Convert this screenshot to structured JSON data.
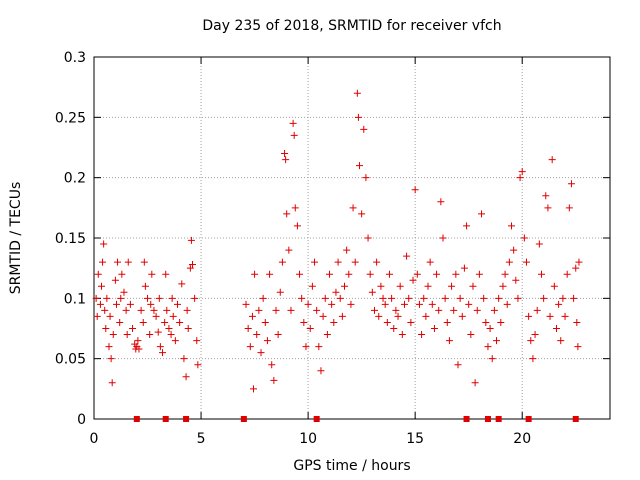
{
  "chart_data": {
    "type": "scatter",
    "title": "Day 235 of 2018, SRMTID for receiver vfch",
    "xlabel": "GPS time / hours",
    "ylabel": "SRMTID / TECUs",
    "xlim": [
      0,
      24.1
    ],
    "ylim": [
      0,
      0.3
    ],
    "x_ticks": [
      0,
      5,
      10,
      15,
      20
    ],
    "x_tick_labels": [
      "0",
      "5",
      "10",
      "15",
      "20"
    ],
    "y_ticks": [
      0,
      0.05,
      0.1,
      0.15,
      0.2,
      0.25,
      0.3
    ],
    "y_tick_labels": [
      "0",
      "0.05",
      "0.1",
      "0.15",
      "0.2",
      "0.25",
      "0.3"
    ],
    "grid": true,
    "marker": "plus",
    "color": "#e00000",
    "zero_markers_x": [
      2.0,
      3.35,
      4.3,
      7.0,
      10.4,
      17.4,
      18.4,
      18.9,
      20.3,
      22.5
    ],
    "series": [
      {
        "name": "SRMTID",
        "points": [
          [
            0.1,
            0.1
          ],
          [
            0.15,
            0.085
          ],
          [
            0.2,
            0.12
          ],
          [
            0.3,
            0.095
          ],
          [
            0.35,
            0.11
          ],
          [
            0.4,
            0.13
          ],
          [
            0.45,
            0.145
          ],
          [
            0.5,
            0.09
          ],
          [
            0.55,
            0.075
          ],
          [
            0.6,
            0.1
          ],
          [
            0.7,
            0.06
          ],
          [
            0.75,
            0.085
          ],
          [
            0.8,
            0.05
          ],
          [
            0.85,
            0.03
          ],
          [
            0.9,
            0.07
          ],
          [
            1.0,
            0.115
          ],
          [
            1.05,
            0.095
          ],
          [
            1.1,
            0.13
          ],
          [
            1.2,
            0.08
          ],
          [
            1.25,
            0.1
          ],
          [
            1.3,
            0.12
          ],
          [
            1.4,
            0.105
          ],
          [
            1.5,
            0.09
          ],
          [
            1.55,
            0.07
          ],
          [
            1.6,
            0.13
          ],
          [
            1.7,
            0.095
          ],
          [
            1.8,
            0.075
          ],
          [
            1.9,
            0.062
          ],
          [
            1.95,
            0.058
          ],
          [
            2.0,
            0.06
          ],
          [
            2.05,
            0.065
          ],
          [
            2.1,
            0.058
          ],
          [
            2.2,
            0.09
          ],
          [
            2.3,
            0.08
          ],
          [
            2.35,
            0.13
          ],
          [
            2.4,
            0.11
          ],
          [
            2.5,
            0.1
          ],
          [
            2.6,
            0.07
          ],
          [
            2.65,
            0.095
          ],
          [
            2.7,
            0.12
          ],
          [
            2.8,
            0.09
          ],
          [
            2.9,
            0.085
          ],
          [
            3.0,
            0.072
          ],
          [
            3.05,
            0.1
          ],
          [
            3.1,
            0.06
          ],
          [
            3.2,
            0.055
          ],
          [
            3.3,
            0.08
          ],
          [
            3.35,
            0.12
          ],
          [
            3.4,
            0.09
          ],
          [
            3.5,
            0.075
          ],
          [
            3.6,
            0.07
          ],
          [
            3.65,
            0.1
          ],
          [
            3.7,
            0.085
          ],
          [
            3.8,
            0.065
          ],
          [
            3.9,
            0.095
          ],
          [
            4.0,
            0.08
          ],
          [
            4.1,
            0.112
          ],
          [
            4.2,
            0.05
          ],
          [
            4.3,
            0.035
          ],
          [
            4.35,
            0.09
          ],
          [
            4.4,
            0.075
          ],
          [
            4.5,
            0.125
          ],
          [
            4.55,
            0.148
          ],
          [
            4.6,
            0.128
          ],
          [
            4.7,
            0.1
          ],
          [
            4.8,
            0.065
          ],
          [
            4.85,
            0.045
          ],
          [
            7.1,
            0.095
          ],
          [
            7.2,
            0.075
          ],
          [
            7.3,
            0.06
          ],
          [
            7.4,
            0.085
          ],
          [
            7.45,
            0.025
          ],
          [
            7.5,
            0.12
          ],
          [
            7.6,
            0.07
          ],
          [
            7.7,
            0.09
          ],
          [
            7.8,
            0.055
          ],
          [
            7.9,
            0.1
          ],
          [
            8.0,
            0.08
          ],
          [
            8.1,
            0.065
          ],
          [
            8.2,
            0.12
          ],
          [
            8.3,
            0.045
          ],
          [
            8.4,
            0.032
          ],
          [
            8.5,
            0.09
          ],
          [
            8.6,
            0.07
          ],
          [
            8.7,
            0.105
          ],
          [
            8.8,
            0.13
          ],
          [
            8.9,
            0.22
          ],
          [
            8.95,
            0.215
          ],
          [
            9.0,
            0.17
          ],
          [
            9.1,
            0.14
          ],
          [
            9.2,
            0.09
          ],
          [
            9.3,
            0.245
          ],
          [
            9.35,
            0.235
          ],
          [
            9.4,
            0.175
          ],
          [
            9.5,
            0.16
          ],
          [
            9.6,
            0.12
          ],
          [
            9.7,
            0.1
          ],
          [
            9.8,
            0.08
          ],
          [
            9.9,
            0.06
          ],
          [
            10.0,
            0.095
          ],
          [
            10.1,
            0.075
          ],
          [
            10.2,
            0.11
          ],
          [
            10.3,
            0.13
          ],
          [
            10.4,
            0.09
          ],
          [
            10.5,
            0.06
          ],
          [
            10.6,
            0.04
          ],
          [
            10.7,
            0.085
          ],
          [
            10.8,
            0.1
          ],
          [
            10.9,
            0.07
          ],
          [
            11.0,
            0.12
          ],
          [
            11.1,
            0.095
          ],
          [
            11.2,
            0.08
          ],
          [
            11.3,
            0.105
          ],
          [
            11.4,
            0.13
          ],
          [
            11.5,
            0.1
          ],
          [
            11.6,
            0.085
          ],
          [
            11.7,
            0.11
          ],
          [
            11.8,
            0.14
          ],
          [
            11.9,
            0.12
          ],
          [
            12.0,
            0.095
          ],
          [
            12.1,
            0.175
          ],
          [
            12.2,
            0.13
          ],
          [
            12.3,
            0.27
          ],
          [
            12.35,
            0.25
          ],
          [
            12.4,
            0.21
          ],
          [
            12.5,
            0.17
          ],
          [
            12.6,
            0.24
          ],
          [
            12.7,
            0.2
          ],
          [
            12.8,
            0.15
          ],
          [
            12.9,
            0.12
          ],
          [
            13.0,
            0.105
          ],
          [
            13.1,
            0.09
          ],
          [
            13.2,
            0.13
          ],
          [
            13.3,
            0.085
          ],
          [
            13.4,
            0.11
          ],
          [
            13.5,
            0.1
          ],
          [
            13.6,
            0.095
          ],
          [
            13.7,
            0.08
          ],
          [
            13.8,
            0.12
          ],
          [
            13.9,
            0.1
          ],
          [
            14.0,
            0.075
          ],
          [
            14.1,
            0.09
          ],
          [
            14.2,
            0.085
          ],
          [
            14.3,
            0.11
          ],
          [
            14.4,
            0.07
          ],
          [
            14.5,
            0.095
          ],
          [
            14.6,
            0.135
          ],
          [
            14.7,
            0.1
          ],
          [
            14.8,
            0.08
          ],
          [
            14.9,
            0.115
          ],
          [
            15.0,
            0.19
          ],
          [
            15.1,
            0.12
          ],
          [
            15.2,
            0.095
          ],
          [
            15.3,
            0.07
          ],
          [
            15.4,
            0.1
          ],
          [
            15.5,
            0.085
          ],
          [
            15.6,
            0.11
          ],
          [
            15.7,
            0.13
          ],
          [
            15.8,
            0.095
          ],
          [
            15.9,
            0.075
          ],
          [
            16.0,
            0.12
          ],
          [
            16.1,
            0.09
          ],
          [
            16.2,
            0.18
          ],
          [
            16.3,
            0.15
          ],
          [
            16.4,
            0.1
          ],
          [
            16.5,
            0.08
          ],
          [
            16.6,
            0.065
          ],
          [
            16.7,
            0.11
          ],
          [
            16.8,
            0.09
          ],
          [
            16.9,
            0.12
          ],
          [
            17.0,
            0.045
          ],
          [
            17.1,
            0.1
          ],
          [
            17.2,
            0.085
          ],
          [
            17.3,
            0.125
          ],
          [
            17.4,
            0.16
          ],
          [
            17.5,
            0.095
          ],
          [
            17.6,
            0.07
          ],
          [
            17.7,
            0.11
          ],
          [
            17.8,
            0.03
          ],
          [
            17.9,
            0.09
          ],
          [
            18.0,
            0.12
          ],
          [
            18.1,
            0.17
          ],
          [
            18.2,
            0.1
          ],
          [
            18.3,
            0.08
          ],
          [
            18.4,
            0.06
          ],
          [
            18.5,
            0.075
          ],
          [
            18.6,
            0.05
          ],
          [
            18.7,
            0.09
          ],
          [
            18.8,
            0.065
          ],
          [
            18.9,
            0.1
          ],
          [
            19.0,
            0.08
          ],
          [
            19.1,
            0.11
          ],
          [
            19.2,
            0.12
          ],
          [
            19.3,
            0.095
          ],
          [
            19.4,
            0.13
          ],
          [
            19.5,
            0.16
          ],
          [
            19.6,
            0.14
          ],
          [
            19.7,
            0.115
          ],
          [
            19.8,
            0.1
          ],
          [
            19.9,
            0.2
          ],
          [
            20.0,
            0.205
          ],
          [
            20.1,
            0.15
          ],
          [
            20.2,
            0.13
          ],
          [
            20.3,
            0.085
          ],
          [
            20.4,
            0.065
          ],
          [
            20.5,
            0.05
          ],
          [
            20.6,
            0.07
          ],
          [
            20.7,
            0.09
          ],
          [
            20.8,
            0.145
          ],
          [
            20.9,
            0.12
          ],
          [
            21.0,
            0.1
          ],
          [
            21.1,
            0.185
          ],
          [
            21.2,
            0.175
          ],
          [
            21.3,
            0.085
          ],
          [
            21.4,
            0.215
          ],
          [
            21.5,
            0.11
          ],
          [
            21.6,
            0.075
          ],
          [
            21.7,
            0.095
          ],
          [
            21.8,
            0.065
          ],
          [
            21.9,
            0.1
          ],
          [
            22.0,
            0.085
          ],
          [
            22.1,
            0.12
          ],
          [
            22.2,
            0.175
          ],
          [
            22.3,
            0.195
          ],
          [
            22.4,
            0.1
          ],
          [
            22.5,
            0.125
          ],
          [
            22.55,
            0.08
          ],
          [
            22.6,
            0.06
          ],
          [
            22.65,
            0.13
          ]
        ]
      }
    ]
  }
}
